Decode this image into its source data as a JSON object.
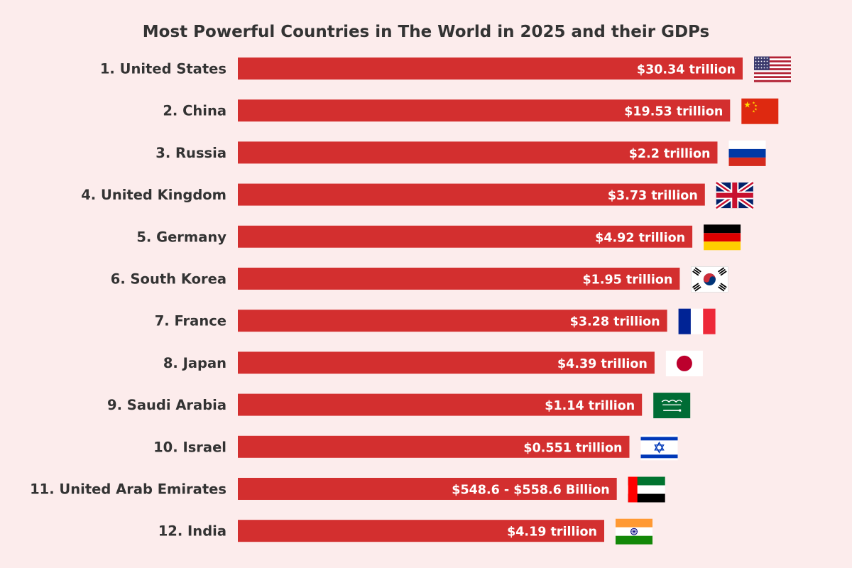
{
  "chart_data": {
    "type": "bar",
    "orientation": "horizontal",
    "title": "Most Powerful Countries in The World in 2025 and their GDPs",
    "categories": [
      "1. United States",
      "2. China",
      "3. Russia",
      "4. United Kingdom",
      "5. Germany",
      "6. South Korea",
      "7. France",
      "8. Japan",
      "9. Saudi Arabia",
      "10. Israel",
      "11. United Arab Emirates",
      "12. India"
    ],
    "value_labels": [
      "$30.34 trillion",
      "$19.53 trillion",
      "$2.2 trillion",
      "$3.73 trillion",
      "$4.92 trillion",
      "$1.95 trillion",
      "$3.28 trillion",
      "$4.39 trillion",
      "$1.14 trillion",
      "$0.551 trillion",
      "$548.6 - $558.6 Billion",
      "$4.19 trillion"
    ],
    "rank_scores": [
      12,
      11,
      10,
      9,
      8,
      7,
      6,
      5,
      4,
      3,
      2,
      1
    ],
    "flags": [
      "united-states-flag",
      "china-flag",
      "russia-flag",
      "united-kingdom-flag",
      "germany-flag",
      "south-korea-flag",
      "france-flag",
      "japan-flag",
      "saudi-arabia-flag",
      "israel-flag",
      "united-arab-emirates-flag",
      "india-flag"
    ],
    "bar_color": "#d32f2f",
    "grid": false,
    "legend": "none"
  }
}
